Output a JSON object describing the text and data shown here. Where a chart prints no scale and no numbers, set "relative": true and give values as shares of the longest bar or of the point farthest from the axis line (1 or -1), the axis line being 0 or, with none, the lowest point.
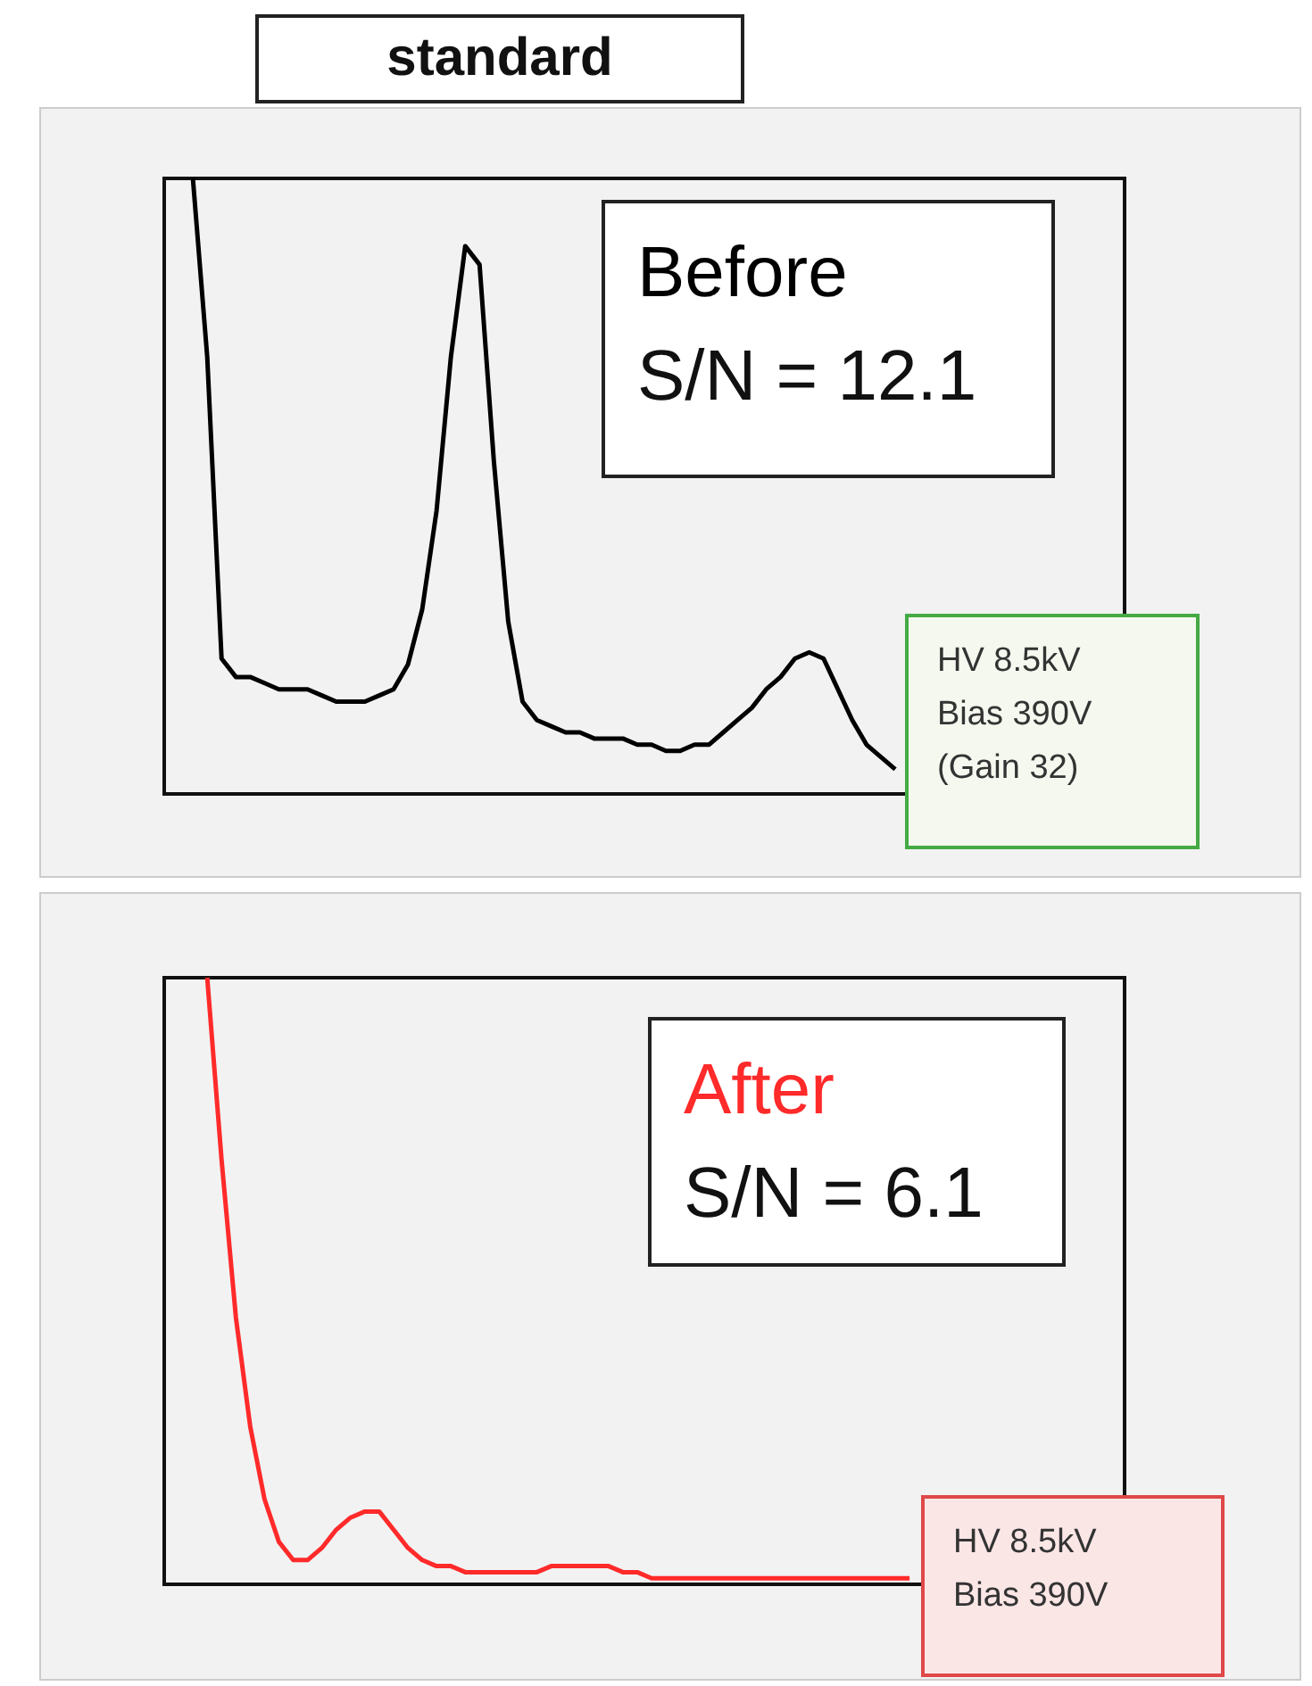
{
  "chart_data": [
    {
      "type": "line",
      "title": "standard",
      "relative": true,
      "annotations": [
        "Before",
        "S/N = 12.1",
        "HV 8.5kV",
        "Bias 390V",
        "(Gain 32)"
      ],
      "categories": [
        null,
        null,
        null,
        null,
        null,
        null,
        null,
        null,
        null,
        null,
        null,
        null,
        null,
        null,
        null,
        null,
        null,
        null,
        null,
        null,
        null,
        null,
        null,
        null,
        null,
        null,
        null,
        null,
        null,
        null,
        null,
        null,
        null,
        null,
        null,
        null,
        null,
        null,
        null,
        null,
        null,
        null,
        null,
        null,
        null,
        null,
        null,
        null,
        null,
        null,
        null,
        null,
        null,
        null,
        null,
        null,
        null,
        null,
        null,
        null,
        null,
        null,
        null,
        null,
        null,
        null,
        null,
        null
      ],
      "series": [
        {
          "color": "#000000",
          "values": [
            null,
            null,
            1.0,
            0.71,
            0.22,
            0.19,
            0.19,
            0.18,
            0.17,
            0.17,
            0.17,
            0.16,
            0.15,
            0.15,
            0.15,
            0.16,
            0.17,
            0.21,
            0.3,
            0.46,
            0.71,
            0.89,
            0.86,
            0.54,
            0.28,
            0.15,
            0.12,
            0.11,
            0.1,
            0.1,
            0.09,
            0.09,
            0.09,
            0.08,
            0.08,
            0.07,
            0.07,
            0.08,
            0.08,
            0.1,
            0.12,
            0.14,
            0.17,
            0.19,
            0.22,
            0.23,
            0.22,
            0.17,
            0.12,
            0.08,
            0.06,
            0.04,
            null,
            null,
            null,
            null,
            null,
            null,
            null,
            null,
            null,
            null,
            null,
            null,
            null,
            null,
            null,
            null
          ]
        }
      ]
    },
    {
      "type": "line",
      "relative": true,
      "annotations": [
        "After",
        "S/N = 6.1",
        "HV 8.5kV",
        "Bias 390V"
      ],
      "categories": [
        null,
        null,
        null,
        null,
        null,
        null,
        null,
        null,
        null,
        null,
        null,
        null,
        null,
        null,
        null,
        null,
        null,
        null,
        null,
        null,
        null,
        null,
        null,
        null,
        null,
        null,
        null,
        null,
        null,
        null,
        null,
        null,
        null,
        null,
        null,
        null,
        null,
        null,
        null,
        null,
        null,
        null,
        null,
        null,
        null,
        null,
        null,
        null,
        null,
        null,
        null,
        null,
        null,
        null,
        null,
        null,
        null,
        null,
        null,
        null,
        null,
        null,
        null,
        null,
        null,
        null,
        null,
        null
      ],
      "series": [
        {
          "color": "#ff2a2a",
          "values": [
            null,
            null,
            null,
            1.0,
            0.7,
            0.44,
            0.26,
            0.14,
            0.07,
            0.04,
            0.04,
            0.06,
            0.09,
            0.11,
            0.12,
            0.12,
            0.09,
            0.06,
            0.04,
            0.03,
            0.03,
            0.02,
            0.02,
            0.02,
            0.02,
            0.02,
            0.02,
            0.03,
            0.03,
            0.03,
            0.03,
            0.03,
            0.02,
            0.02,
            0.01,
            0.01,
            0.01,
            0.01,
            0.01,
            0.01,
            0.01,
            0.01,
            0.01,
            0.01,
            0.01,
            0.01,
            0.01,
            0.01,
            0.01,
            0.01,
            0.01,
            0.01,
            0.01,
            null,
            null,
            null,
            null,
            null,
            null,
            null,
            null,
            null,
            null,
            null,
            null,
            null,
            null,
            null
          ]
        }
      ]
    }
  ]
}
